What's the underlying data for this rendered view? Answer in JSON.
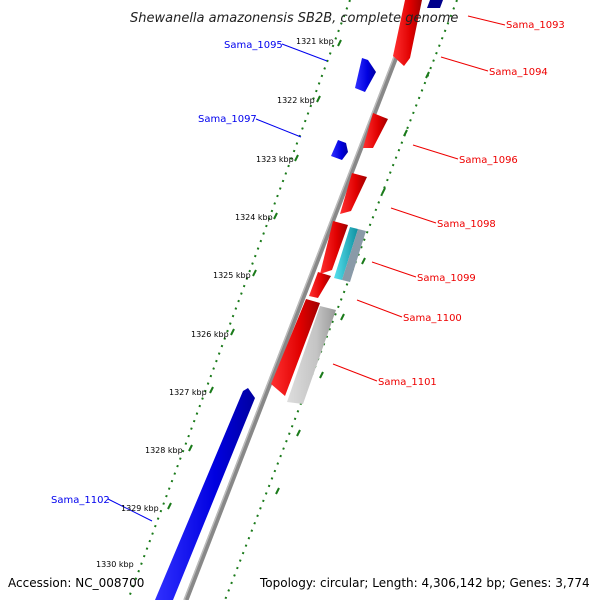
{
  "title": "Shewanella amazonensis SB2B, complete genome",
  "footer": {
    "accession": "Accession: NC_008700",
    "info": "Topology: circular; Length: 4,306,142 bp; Genes: 3,774"
  },
  "ticks": [
    "1321 kbp",
    "1322 kbp",
    "1323 kbp",
    "1324 kbp",
    "1325 kbp",
    "1326 kbp",
    "1327 kbp",
    "1328 kbp",
    "1329 kbp",
    "1330 kbp"
  ],
  "genes_forward": [
    {
      "label": "Sama_1095",
      "color": "#0000ee"
    },
    {
      "label": "Sama_1097",
      "color": "#0000ee"
    },
    {
      "label": "Sama_1102",
      "color": "#0000ee"
    }
  ],
  "genes_reverse": [
    {
      "label": "Sama_1093",
      "color": "#ee0000"
    },
    {
      "label": "Sama_1094",
      "color": "#ee0000"
    },
    {
      "label": "Sama_1096",
      "color": "#ee0000"
    },
    {
      "label": "Sama_1098",
      "color": "#ee0000"
    },
    {
      "label": "Sama_1099",
      "color": "#ee0000"
    },
    {
      "label": "Sama_1100",
      "color": "#ee0000"
    },
    {
      "label": "Sama_1101",
      "color": "#ee0000"
    }
  ],
  "colors": {
    "forward": "#0000ee",
    "reverse": "#ee0000",
    "backbone": "#888888",
    "tick": "#1a7a1a",
    "rna": "#22b8c8",
    "pseudo": "#bfbfbf"
  }
}
